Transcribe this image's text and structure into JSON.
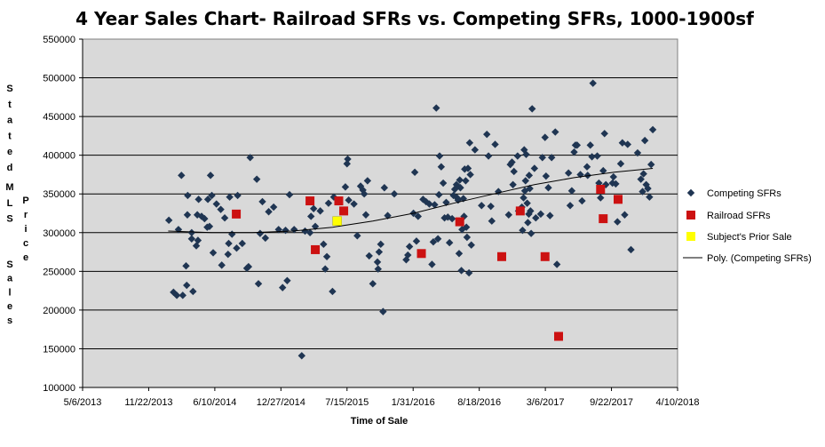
{
  "chart_data": {
    "type": "scatter",
    "title": "4 Year Sales Chart- Railroad SFRs vs. Competing SFRs, 1000-1900sf",
    "xlabel": "Time of Sale",
    "ylabel_words": [
      "Stated",
      "MLS",
      "Price",
      "Sales"
    ],
    "x_ticks": [
      "5/6/2013",
      "11/22/2013",
      "6/10/2014",
      "12/27/2014",
      "7/15/2015",
      "1/31/2016",
      "8/18/2016",
      "3/6/2017",
      "9/22/2017",
      "4/10/2018"
    ],
    "xlim": [
      "2013-05-06",
      "2018-04-10"
    ],
    "x_tick_interval_days": 200,
    "ylim": [
      100000,
      550000
    ],
    "y_ticks": [
      "100000",
      "150000",
      "200000",
      "250000",
      "300000",
      "350000",
      "400000",
      "450000",
      "500000",
      "550000"
    ],
    "grid": "horizontal",
    "legend_position": "right",
    "colors": {
      "plot_background": "#d9d9d9",
      "competing": "#1f3552",
      "railroad": "#cc1111",
      "subject": "#ffff00",
      "trendline": "#000000"
    },
    "series": [
      {
        "name": "Competing SFRs",
        "marker": "diamond",
        "points": [
          [
            "2014-01-22",
            316000
          ],
          [
            "2014-02-05",
            223000
          ],
          [
            "2014-02-15",
            219000
          ],
          [
            "2014-02-20",
            304000
          ],
          [
            "2014-03-05",
            219000
          ],
          [
            "2014-03-01",
            374000
          ],
          [
            "2014-03-15",
            257000
          ],
          [
            "2014-03-17",
            232000
          ],
          [
            "2014-03-20",
            348000
          ],
          [
            "2014-03-19",
            323000
          ],
          [
            "2014-04-01",
            292000
          ],
          [
            "2014-04-01",
            300000
          ],
          [
            "2014-04-05",
            224000
          ],
          [
            "2014-04-15",
            283000
          ],
          [
            "2014-04-18",
            323000
          ],
          [
            "2014-04-20",
            290000
          ],
          [
            "2014-04-22",
            343000
          ],
          [
            "2014-05-01",
            321000
          ],
          [
            "2014-05-10",
            318000
          ],
          [
            "2014-05-18",
            307000
          ],
          [
            "2014-05-20",
            343000
          ],
          [
            "2014-05-25",
            308000
          ],
          [
            "2014-05-28",
            374000
          ],
          [
            "2014-06-01",
            348000
          ],
          [
            "2014-06-05",
            274000
          ],
          [
            "2014-06-15",
            337000
          ],
          [
            "2014-06-28",
            330000
          ],
          [
            "2014-07-01",
            258000
          ],
          [
            "2014-07-10",
            319000
          ],
          [
            "2014-07-20",
            272000
          ],
          [
            "2014-07-22",
            286000
          ],
          [
            "2014-07-25",
            346000
          ],
          [
            "2014-08-01",
            298000
          ],
          [
            "2014-08-15",
            280000
          ],
          [
            "2014-08-18",
            348000
          ],
          [
            "2014-09-01",
            286000
          ],
          [
            "2014-09-15",
            254000
          ],
          [
            "2014-09-20",
            256000
          ],
          [
            "2014-09-25",
            397000
          ],
          [
            "2014-10-15",
            369000
          ],
          [
            "2014-10-20",
            234000
          ],
          [
            "2014-10-25",
            299000
          ],
          [
            "2014-11-01",
            340000
          ],
          [
            "2014-11-10",
            293000
          ],
          [
            "2014-11-20",
            327000
          ],
          [
            "2014-12-05",
            333000
          ],
          [
            "2014-12-20",
            304000
          ],
          [
            "2015-01-01",
            229000
          ],
          [
            "2015-01-10",
            303000
          ],
          [
            "2015-01-15",
            238000
          ],
          [
            "2015-01-22",
            349000
          ],
          [
            "2015-02-05",
            304000
          ],
          [
            "2015-02-28",
            141000
          ],
          [
            "2015-03-10",
            302000
          ],
          [
            "2015-03-25",
            300000
          ],
          [
            "2015-03-28",
            321000
          ],
          [
            "2015-04-05",
            331000
          ],
          [
            "2015-04-10",
            308000
          ],
          [
            "2015-04-25",
            328000
          ],
          [
            "2015-05-05",
            285000
          ],
          [
            "2015-05-15",
            269000
          ],
          [
            "2015-05-10",
            253000
          ],
          [
            "2015-05-20",
            338000
          ],
          [
            "2015-06-01",
            224000
          ],
          [
            "2015-06-05",
            346000
          ],
          [
            "2015-06-15",
            314000
          ],
          [
            "2015-07-10",
            359000
          ],
          [
            "2015-07-15",
            389000
          ],
          [
            "2015-07-17",
            395000
          ],
          [
            "2015-07-20",
            342000
          ],
          [
            "2015-08-05",
            337000
          ],
          [
            "2015-08-15",
            296000
          ],
          [
            "2015-08-25",
            360000
          ],
          [
            "2015-09-01",
            355000
          ],
          [
            "2015-09-05",
            350000
          ],
          [
            "2015-09-10",
            323000
          ],
          [
            "2015-09-15",
            367000
          ],
          [
            "2015-09-20",
            270000
          ],
          [
            "2015-10-01",
            234000
          ],
          [
            "2015-10-15",
            262000
          ],
          [
            "2015-10-17",
            253000
          ],
          [
            "2015-10-20",
            275000
          ],
          [
            "2015-10-25",
            285000
          ],
          [
            "2015-11-01",
            198000
          ],
          [
            "2015-11-05",
            358000
          ],
          [
            "2015-11-15",
            322000
          ],
          [
            "2015-12-05",
            350000
          ],
          [
            "2016-01-10",
            265000
          ],
          [
            "2016-01-15",
            271000
          ],
          [
            "2016-01-20",
            282000
          ],
          [
            "2016-02-01",
            325000
          ],
          [
            "2016-02-05",
            378000
          ],
          [
            "2016-02-10",
            289000
          ],
          [
            "2016-02-15",
            321000
          ],
          [
            "2016-03-01",
            343000
          ],
          [
            "2016-03-10",
            340000
          ],
          [
            "2016-03-20",
            337000
          ],
          [
            "2016-03-28",
            259000
          ],
          [
            "2016-04-01",
            288000
          ],
          [
            "2016-04-05",
            336000
          ],
          [
            "2016-04-10",
            461000
          ],
          [
            "2016-04-15",
            292000
          ],
          [
            "2016-04-18",
            349000
          ],
          [
            "2016-04-20",
            399000
          ],
          [
            "2016-04-25",
            385000
          ],
          [
            "2016-05-01",
            364000
          ],
          [
            "2016-05-05",
            319000
          ],
          [
            "2016-05-10",
            339000
          ],
          [
            "2016-05-15",
            320000
          ],
          [
            "2016-05-20",
            287000
          ],
          [
            "2016-05-28",
            318000
          ],
          [
            "2016-06-01",
            348000
          ],
          [
            "2016-06-05",
            356000
          ],
          [
            "2016-06-10",
            362000
          ],
          [
            "2016-06-12",
            345000
          ],
          [
            "2016-06-15",
            342000
          ],
          [
            "2016-06-18",
            273000
          ],
          [
            "2016-06-20",
            368000
          ],
          [
            "2016-06-22",
            358000
          ],
          [
            "2016-06-25",
            251000
          ],
          [
            "2016-06-27",
            304000
          ],
          [
            "2016-07-01",
            344000
          ],
          [
            "2016-07-03",
            321000
          ],
          [
            "2016-07-05",
            382000
          ],
          [
            "2016-07-08",
            367000
          ],
          [
            "2016-07-10",
            307000
          ],
          [
            "2016-07-12",
            294000
          ],
          [
            "2016-07-15",
            383000
          ],
          [
            "2016-07-18",
            248000
          ],
          [
            "2016-07-20",
            416000
          ],
          [
            "2016-07-22",
            375000
          ],
          [
            "2016-07-25",
            284000
          ],
          [
            "2016-08-05",
            407000
          ],
          [
            "2016-08-25",
            335000
          ],
          [
            "2016-09-10",
            427000
          ],
          [
            "2016-09-15",
            399000
          ],
          [
            "2016-09-22",
            334000
          ],
          [
            "2016-09-25",
            315000
          ],
          [
            "2016-10-05",
            414000
          ],
          [
            "2016-10-15",
            353000
          ],
          [
            "2016-11-15",
            323000
          ],
          [
            "2016-11-20",
            388000
          ],
          [
            "2016-11-25",
            391000
          ],
          [
            "2016-11-28",
            362000
          ],
          [
            "2016-12-01",
            379000
          ],
          [
            "2016-12-12",
            399000
          ],
          [
            "2016-12-15",
            328000
          ],
          [
            "2016-12-25",
            333000
          ],
          [
            "2016-12-27",
            303000
          ],
          [
            "2016-12-30",
            345000
          ],
          [
            "2017-01-01",
            407000
          ],
          [
            "2017-01-03",
            354000
          ],
          [
            "2017-01-05",
            367000
          ],
          [
            "2017-01-07",
            401000
          ],
          [
            "2017-01-10",
            338000
          ],
          [
            "2017-01-12",
            313000
          ],
          [
            "2017-01-15",
            324000
          ],
          [
            "2017-01-16",
            374000
          ],
          [
            "2017-01-18",
            357000
          ],
          [
            "2017-01-20",
            328000
          ],
          [
            "2017-01-22",
            299000
          ],
          [
            "2017-01-25",
            460000
          ],
          [
            "2017-02-01",
            383000
          ],
          [
            "2017-02-05",
            319000
          ],
          [
            "2017-02-20",
            324000
          ],
          [
            "2017-02-25",
            397000
          ],
          [
            "2017-03-05",
            423000
          ],
          [
            "2017-03-08",
            373000
          ],
          [
            "2017-03-15",
            358000
          ],
          [
            "2017-03-20",
            322000
          ],
          [
            "2017-03-25",
            397000
          ],
          [
            "2017-04-05",
            430000
          ],
          [
            "2017-04-10",
            259000
          ],
          [
            "2017-05-15",
            377000
          ],
          [
            "2017-05-20",
            335000
          ],
          [
            "2017-05-25",
            354000
          ],
          [
            "2017-06-01",
            404000
          ],
          [
            "2017-06-05",
            413000
          ],
          [
            "2017-06-10",
            413000
          ],
          [
            "2017-06-20",
            375000
          ],
          [
            "2017-06-25",
            341000
          ],
          [
            "2017-07-10",
            385000
          ],
          [
            "2017-07-12",
            374000
          ],
          [
            "2017-07-20",
            413000
          ],
          [
            "2017-07-25",
            398000
          ],
          [
            "2017-07-28",
            493000
          ],
          [
            "2017-08-10",
            399000
          ],
          [
            "2017-08-15",
            364000
          ],
          [
            "2017-08-20",
            345000
          ],
          [
            "2017-08-28",
            380000
          ],
          [
            "2017-09-01",
            428000
          ],
          [
            "2017-09-05",
            362000
          ],
          [
            "2017-09-25",
            364000
          ],
          [
            "2017-09-28",
            372000
          ],
          [
            "2017-10-05",
            363000
          ],
          [
            "2017-10-10",
            314000
          ],
          [
            "2017-10-20",
            389000
          ],
          [
            "2017-10-25",
            416000
          ],
          [
            "2017-11-01",
            323000
          ],
          [
            "2017-11-10",
            414000
          ],
          [
            "2017-11-20",
            278000
          ],
          [
            "2017-12-10",
            403000
          ],
          [
            "2017-12-20",
            369000
          ],
          [
            "2017-12-25",
            353000
          ],
          [
            "2017-12-28",
            376000
          ],
          [
            "2018-01-01",
            419000
          ],
          [
            "2018-01-05",
            362000
          ],
          [
            "2018-01-10",
            357000
          ],
          [
            "2018-01-15",
            346000
          ],
          [
            "2018-01-20",
            388000
          ],
          [
            "2018-01-25",
            433000
          ]
        ]
      },
      {
        "name": "Railroad SFRs",
        "marker": "square",
        "points": [
          [
            "2014-08-14",
            324000
          ],
          [
            "2015-03-25",
            341000
          ],
          [
            "2015-04-10",
            278000
          ],
          [
            "2015-06-20",
            341000
          ],
          [
            "2015-07-05",
            328000
          ],
          [
            "2016-02-25",
            273000
          ],
          [
            "2016-06-20",
            314000
          ],
          [
            "2016-10-25",
            269000
          ],
          [
            "2016-12-20",
            328000
          ],
          [
            "2017-03-05",
            269000
          ],
          [
            "2017-04-15",
            166000
          ],
          [
            "2017-08-20",
            356000
          ],
          [
            "2017-08-28",
            318000
          ],
          [
            "2017-10-12",
            343000
          ]
        ]
      },
      {
        "name": "Subject's Prior Sale",
        "marker": "square",
        "points": [
          [
            "2015-06-15",
            315000
          ]
        ]
      }
    ],
    "trendline": {
      "name": "Poly. (Competing SFRs)",
      "type": "polynomial",
      "points": [
        [
          "2014-01-20",
          302000
        ],
        [
          "2014-06-01",
          300000
        ],
        [
          "2014-10-01",
          300000
        ],
        [
          "2015-02-01",
          302000
        ],
        [
          "2015-06-01",
          307000
        ],
        [
          "2015-10-01",
          315000
        ],
        [
          "2016-02-01",
          325000
        ],
        [
          "2016-06-01",
          338000
        ],
        [
          "2016-10-01",
          350000
        ],
        [
          "2017-02-01",
          362000
        ],
        [
          "2017-06-01",
          371000
        ],
        [
          "2017-10-01",
          378000
        ],
        [
          "2018-01-25",
          383000
        ]
      ]
    }
  }
}
